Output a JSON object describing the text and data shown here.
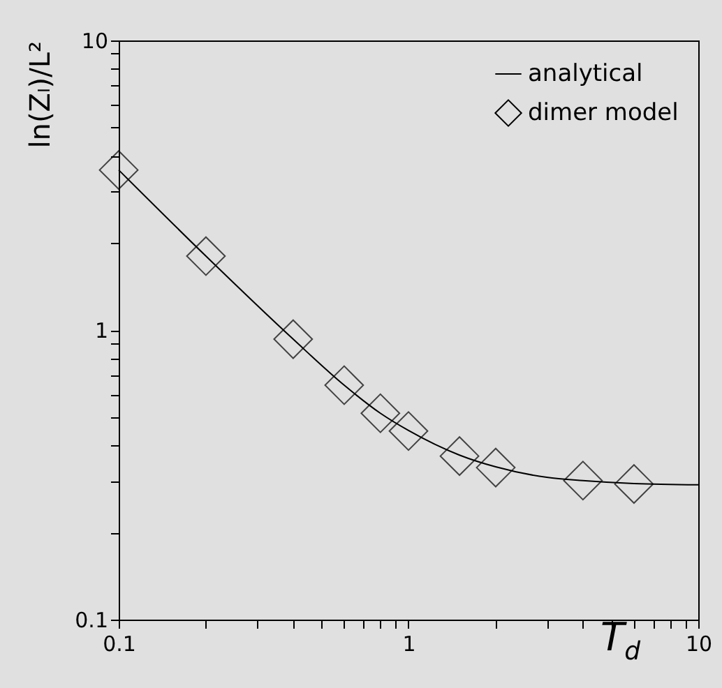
{
  "chart_data": {
    "type": "line",
    "xlabel": "T$_{d}$",
    "ylabel": "ln(Zₗ)/L²",
    "log": "xy",
    "xlim": [
      0.1,
      10
    ],
    "ylim": [
      0.1,
      10
    ],
    "xticks": [
      0.1,
      {
        "value": 0.2,
        "label": null
      },
      {
        "value": 0.3,
        "label": null
      },
      {
        "value": 0.4,
        "label": null
      },
      {
        "value": 0.5,
        "label": null
      },
      {
        "value": 0.6,
        "label": null
      },
      {
        "value": 0.7,
        "label": null
      },
      {
        "value": 0.8,
        "label": null
      },
      {
        "value": 0.9,
        "label": null
      },
      1,
      {
        "value": 2,
        "label": null
      },
      {
        "value": 3,
        "label": null
      },
      {
        "value": 4,
        "label": null
      },
      {
        "value": 5,
        "label": null
      },
      {
        "value": 6,
        "label": null
      },
      {
        "value": 7,
        "label": null
      },
      {
        "value": 8,
        "label": null
      },
      {
        "value": 9,
        "label": null
      },
      10
    ],
    "yticks": [
      0.1,
      {
        "value": 0.2,
        "label": null
      },
      {
        "value": 0.3,
        "label": null
      },
      {
        "value": 0.4,
        "label": null
      },
      {
        "value": 0.5,
        "label": null
      },
      {
        "value": 0.6,
        "label": null
      },
      {
        "value": 0.7,
        "label": null
      },
      {
        "value": 0.8,
        "label": null
      },
      {
        "value": 0.9,
        "label": null
      },
      1,
      {
        "value": 2,
        "label": null
      },
      {
        "value": 3,
        "label": null
      },
      {
        "value": 4,
        "label": null
      },
      {
        "value": 5,
        "label": null
      },
      {
        "value": 6,
        "label": null
      },
      {
        "value": 7,
        "label": null
      },
      {
        "value": 8,
        "label": null
      },
      {
        "value": 9,
        "label": null
      },
      10
    ],
    "grid": false,
    "legend": "top right",
    "series": [
      {
        "name": "analytical",
        "color": "#000000",
        "marker": "none",
        "line_style": "solid",
        "x": [
          0.1,
          0.2,
          0.4,
          0.6,
          0.8,
          1,
          1.5,
          2,
          3,
          4,
          6,
          10
        ],
        "values": [
          3.57,
          1.8,
          0.93,
          0.645,
          0.516,
          0.45,
          0.37,
          0.337,
          0.31,
          0.302,
          0.295,
          0.292
        ]
      },
      {
        "name": "dimer model",
        "type": "scatter",
        "color": "#000000",
        "marker": "diamond",
        "x": [
          0.1,
          0.2,
          0.4,
          0.6,
          0.8,
          1,
          1.5,
          2,
          4,
          6
        ],
        "values": [
          3.57,
          1.8,
          0.93,
          0.645,
          0.516,
          0.448,
          0.367,
          0.335,
          0.302,
          0.294
        ]
      }
    ]
  }
}
